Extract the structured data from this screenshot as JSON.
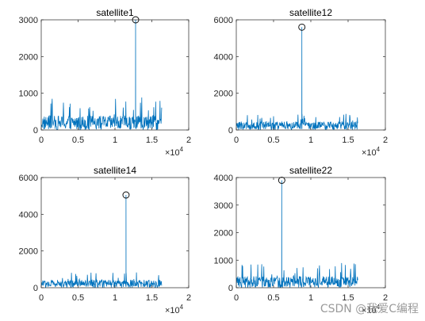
{
  "watermark": "CSDN @我爱C编程",
  "colors": {
    "series": "#0072BD",
    "axis": "#262626",
    "marker": "#000000"
  },
  "chart_data": [
    {
      "type": "line",
      "title": "satellite1",
      "x_range": [
        0,
        16368
      ],
      "xlim": [
        0,
        20000
      ],
      "ylim": [
        0,
        3000
      ],
      "xticks": [
        0,
        0.5,
        1,
        1.5,
        2
      ],
      "yticks": [
        0,
        1000,
        2000,
        3000
      ],
      "x_multiplier": "×10",
      "x_exponent": "4",
      "noise_level": 300,
      "noise_max": 1000,
      "peak": {
        "x": 12800,
        "y": 3000
      },
      "grid": false
    },
    {
      "type": "line",
      "title": "satellite12",
      "x_range": [
        0,
        16368
      ],
      "xlim": [
        0,
        20000
      ],
      "ylim": [
        0,
        6000
      ],
      "xticks": [
        0,
        0.5,
        1,
        1.5,
        2
      ],
      "yticks": [
        0,
        2000,
        4000,
        6000
      ],
      "x_multiplier": "×10",
      "x_exponent": "4",
      "noise_level": 350,
      "noise_max": 900,
      "peak": {
        "x": 8800,
        "y": 5600
      },
      "grid": false
    },
    {
      "type": "line",
      "title": "satellite14",
      "x_range": [
        0,
        16368
      ],
      "xlim": [
        0,
        20000
      ],
      "ylim": [
        0,
        6000
      ],
      "xticks": [
        0,
        0.5,
        1,
        1.5,
        2
      ],
      "yticks": [
        0,
        2000,
        4000,
        6000
      ],
      "x_multiplier": "×10",
      "x_exponent": "4",
      "noise_level": 330,
      "noise_max": 850,
      "peak": {
        "x": 11500,
        "y": 5050
      },
      "grid": false
    },
    {
      "type": "line",
      "title": "satellite22",
      "x_range": [
        0,
        16368
      ],
      "xlim": [
        0,
        20000
      ],
      "ylim": [
        0,
        4000
      ],
      "xticks": [
        0,
        0.5,
        1,
        1.5,
        2
      ],
      "yticks": [
        0,
        1000,
        2000,
        3000,
        4000
      ],
      "x_multiplier": "×10",
      "x_exponent": "4",
      "noise_level": 320,
      "noise_max": 900,
      "peak": {
        "x": 6100,
        "y": 3900
      },
      "grid": false
    }
  ]
}
